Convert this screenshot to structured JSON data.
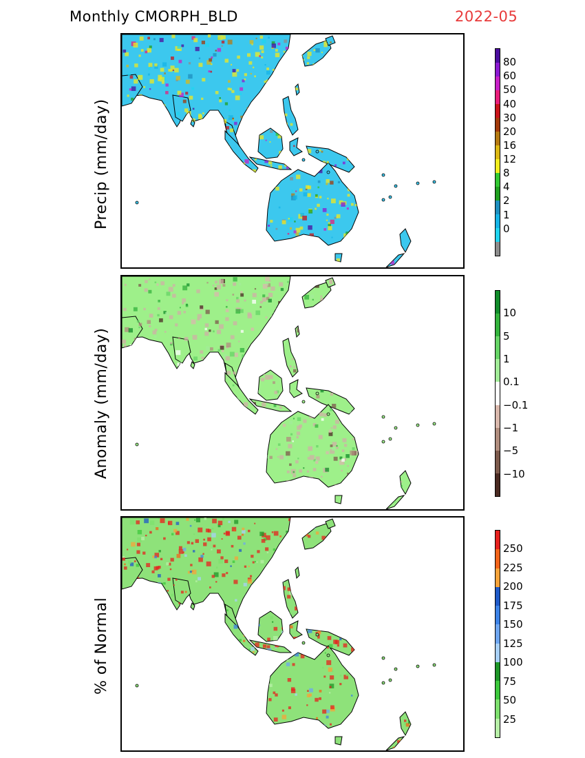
{
  "header": {
    "title": "Monthly CMORPH_BLD",
    "date": "2022-05",
    "date_color": "#e83a3a"
  },
  "panels": [
    {
      "ylabel": "Precip (mm/day)",
      "labels": [
        "80",
        "60",
        "50",
        "40",
        "30",
        "20",
        "16",
        "12",
        "8",
        "4",
        "2",
        "1",
        "0"
      ],
      "colors": [
        "#4b0d9e",
        "#8b1ad1",
        "#c720c7",
        "#e81e7a",
        "#c9141a",
        "#a33a0a",
        "#b57a12",
        "#dcb814",
        "#f2ee1e",
        "#32c832",
        "#20a020",
        "#1e8fbf",
        "#16b4e6",
        "#20d4f0",
        "#8c8c8c"
      ],
      "land": "#3cc8ee",
      "hotspot": "#f2e81e"
    },
    {
      "ylabel": "Anomaly (mm/day)",
      "labels": [
        "10",
        "5",
        "1",
        "0.1",
        "−0.1",
        "−1",
        "−5",
        "−10"
      ],
      "colors": [
        "#118c2a",
        "#33b33c",
        "#66d466",
        "#a2ec98",
        "#ffffff",
        "#d9b8ac",
        "#b08d7e",
        "#7d5a4c",
        "#4a2a22"
      ],
      "land": "#9ef08a",
      "hotspot": "#cfb0a5"
    },
    {
      "ylabel": "% of Normal",
      "labels": [
        "250",
        "225",
        "200",
        "175",
        "150",
        "125",
        "100",
        "75",
        "50",
        "25"
      ],
      "colors": [
        "#e6211e",
        "#f2641a",
        "#f5a33a",
        "#1f5ac8",
        "#3c82e6",
        "#6ea6f0",
        "#a8d0f8",
        "#1e9628",
        "#3cc83c",
        "#7ee06e",
        "#b8f0a8"
      ],
      "land": "#8ee27a",
      "hotspot": "#e6211e"
    }
  ]
}
